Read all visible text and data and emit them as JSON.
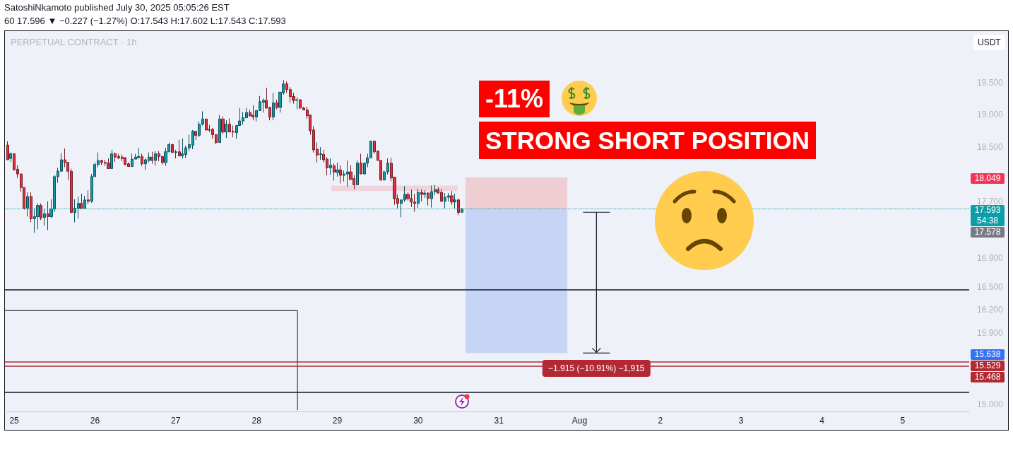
{
  "chart_data": {
    "type": "candlestick",
    "title": "SatoshiNkamoto published July 30, 2025 05:05:26 EST",
    "subtitle": "60 17.596 ▼ −0.227 (−1.27%) O:17.543 H:17.602 L:17.543 C:17.593",
    "ylabel": "USDT",
    "annotations": [
      "PERPETUAL CONTRACT · 1h",
      "54:38",
      "-11%",
      "STRONG SHORT POSITION",
      "17.578",
      {
        "text": "−1.915 (−10.91%) −1,915",
        "x": "2025-08-01T05:00",
        "y": 15.44
      },
      "18.049",
      "15.638"
    ],
    "x": [
      "2025-07-24T22:00",
      "2025-07-24T23:00",
      "2025-07-25T00:00",
      "2025-07-25T01:00",
      "2025-07-25T02:00",
      "2025-07-25T03:00",
      "2025-07-25T04:00",
      "2025-07-25T05:00",
      "2025-07-25T06:00",
      "2025-07-25T07:00",
      "2025-07-25T08:00",
      "2025-07-25T09:00",
      "2025-07-25T10:00",
      "2025-07-25T11:00",
      "2025-07-25T12:00",
      "2025-07-25T13:00",
      "2025-07-25T14:00",
      "2025-07-25T15:00",
      "2025-07-25T16:00",
      "2025-07-25T17:00",
      "2025-07-25T18:00",
      "2025-07-25T19:00",
      "2025-07-25T20:00",
      "2025-07-25T21:00",
      "2025-07-25T22:00",
      "2025-07-25T23:00",
      "2025-07-26T00:00",
      "2025-07-26T01:00",
      "2025-07-26T02:00",
      "2025-07-26T03:00",
      "2025-07-26T04:00",
      "2025-07-26T05:00",
      "2025-07-26T06:00",
      "2025-07-26T07:00",
      "2025-07-26T08:00",
      "2025-07-26T09:00",
      "2025-07-26T10:00",
      "2025-07-26T11:00",
      "2025-07-26T12:00",
      "2025-07-26T13:00",
      "2025-07-26T14:00",
      "2025-07-26T15:00",
      "2025-07-26T16:00",
      "2025-07-26T17:00",
      "2025-07-26T18:00",
      "2025-07-26T19:00",
      "2025-07-26T20:00",
      "2025-07-26T21:00",
      "2025-07-26T22:00",
      "2025-07-26T23:00",
      "2025-07-27T00:00",
      "2025-07-27T01:00",
      "2025-07-27T02:00",
      "2025-07-27T03:00",
      "2025-07-27T04:00",
      "2025-07-27T05:00",
      "2025-07-27T06:00",
      "2025-07-27T07:00",
      "2025-07-27T08:00",
      "2025-07-27T09:00",
      "2025-07-27T10:00",
      "2025-07-27T11:00",
      "2025-07-27T12:00",
      "2025-07-27T13:00",
      "2025-07-27T14:00",
      "2025-07-27T15:00",
      "2025-07-27T16:00",
      "2025-07-27T17:00",
      "2025-07-27T18:00",
      "2025-07-27T19:00",
      "2025-07-27T20:00",
      "2025-07-27T21:00",
      "2025-07-27T22:00",
      "2025-07-27T23:00",
      "2025-07-28T00:00",
      "2025-07-28T01:00",
      "2025-07-28T02:00",
      "2025-07-28T03:00",
      "2025-07-28T04:00",
      "2025-07-28T05:00",
      "2025-07-28T06:00",
      "2025-07-28T07:00",
      "2025-07-28T08:00",
      "2025-07-28T09:00",
      "2025-07-28T10:00",
      "2025-07-28T11:00",
      "2025-07-28T12:00",
      "2025-07-28T13:00",
      "2025-07-28T14:00",
      "2025-07-28T15:00",
      "2025-07-28T16:00",
      "2025-07-28T17:00",
      "2025-07-28T18:00",
      "2025-07-28T19:00",
      "2025-07-28T20:00",
      "2025-07-28T21:00",
      "2025-07-28T22:00",
      "2025-07-28T23:00",
      "2025-07-29T00:00",
      "2025-07-29T01:00",
      "2025-07-29T02:00",
      "2025-07-29T03:00",
      "2025-07-29T04:00",
      "2025-07-29T05:00",
      "2025-07-29T06:00",
      "2025-07-29T07:00",
      "2025-07-29T08:00",
      "2025-07-29T09:00",
      "2025-07-29T10:00",
      "2025-07-29T11:00",
      "2025-07-29T12:00",
      "2025-07-29T13:00",
      "2025-07-29T14:00",
      "2025-07-29T15:00",
      "2025-07-29T16:00",
      "2025-07-29T17:00",
      "2025-07-29T18:00",
      "2025-07-29T19:00",
      "2025-07-29T20:00",
      "2025-07-29T21:00",
      "2025-07-29T22:00",
      "2025-07-29T23:00",
      "2025-07-30T00:00",
      "2025-07-30T01:00",
      "2025-07-30T02:00",
      "2025-07-30T03:00",
      "2025-07-30T04:00",
      "2025-07-30T05:00",
      "2025-07-30T06:00",
      "2025-07-30T07:00",
      "2025-07-30T08:00",
      "2025-07-30T09:00",
      "2025-07-30T10:00",
      "2025-07-30T11:00",
      "2025-07-30T12:00",
      "2025-07-30T13:00"
    ],
    "ohlc": [
      [
        18.53,
        18.59,
        18.31,
        18.31
      ],
      [
        18.33,
        18.42,
        18.28,
        18.4
      ],
      [
        18.4,
        18.41,
        18.15,
        18.16
      ],
      [
        18.17,
        18.23,
        18.04,
        18.1
      ],
      [
        18.1,
        18.1,
        17.84,
        17.9
      ],
      [
        17.9,
        17.9,
        17.58,
        17.6
      ],
      [
        17.6,
        17.83,
        17.48,
        17.77
      ],
      [
        17.77,
        17.83,
        17.4,
        17.45
      ],
      [
        17.45,
        17.6,
        17.25,
        17.48
      ],
      [
        17.48,
        17.67,
        17.3,
        17.64
      ],
      [
        17.64,
        17.67,
        17.43,
        17.46
      ],
      [
        17.47,
        17.59,
        17.35,
        17.52
      ],
      [
        17.52,
        17.7,
        17.29,
        17.48
      ],
      [
        17.48,
        17.73,
        17.46,
        17.59
      ],
      [
        17.59,
        18.08,
        17.55,
        18.06
      ],
      [
        18.06,
        18.19,
        17.97,
        18.14
      ],
      [
        18.14,
        18.41,
        18.14,
        18.31
      ],
      [
        18.31,
        18.48,
        18.2,
        18.27
      ],
      [
        18.27,
        18.28,
        18.01,
        18.14
      ],
      [
        18.14,
        18.18,
        17.53,
        17.54
      ],
      [
        17.54,
        17.73,
        17.4,
        17.6
      ],
      [
        17.6,
        17.77,
        17.45,
        17.67
      ],
      [
        17.67,
        17.81,
        17.6,
        17.6
      ],
      [
        17.6,
        17.78,
        17.6,
        17.72
      ],
      [
        17.72,
        17.86,
        17.66,
        17.7
      ],
      [
        17.7,
        18.1,
        17.68,
        18.06
      ],
      [
        18.06,
        18.27,
        18.06,
        18.24
      ],
      [
        18.24,
        18.42,
        18.2,
        18.3
      ],
      [
        18.3,
        18.31,
        18.23,
        18.27
      ],
      [
        18.27,
        18.31,
        18.22,
        18.26
      ],
      [
        18.26,
        18.33,
        18.18,
        18.18
      ],
      [
        18.18,
        18.46,
        18.18,
        18.4
      ],
      [
        18.4,
        18.42,
        18.28,
        18.35
      ],
      [
        18.36,
        18.4,
        18.32,
        18.34
      ],
      [
        18.35,
        18.39,
        18.29,
        18.33
      ],
      [
        18.34,
        18.35,
        18.23,
        18.24
      ],
      [
        18.25,
        18.27,
        18.21,
        18.21
      ],
      [
        18.21,
        18.4,
        18.21,
        18.32
      ],
      [
        18.32,
        18.4,
        18.32,
        18.35
      ],
      [
        18.34,
        18.49,
        18.34,
        18.36
      ],
      [
        18.36,
        18.4,
        18.22,
        18.25
      ],
      [
        18.25,
        18.33,
        18.16,
        18.31
      ],
      [
        18.3,
        18.42,
        18.27,
        18.35
      ],
      [
        18.35,
        18.43,
        18.25,
        18.3
      ],
      [
        18.3,
        18.44,
        18.22,
        18.4
      ],
      [
        18.4,
        18.44,
        18.29,
        18.36
      ],
      [
        18.36,
        18.37,
        18.24,
        18.27
      ],
      [
        18.27,
        18.49,
        18.22,
        18.43
      ],
      [
        18.43,
        18.57,
        18.43,
        18.54
      ],
      [
        18.54,
        18.55,
        18.42,
        18.42
      ],
      [
        18.42,
        18.46,
        18.33,
        18.43
      ],
      [
        18.43,
        18.61,
        18.36,
        18.37
      ],
      [
        18.37,
        18.63,
        18.33,
        18.4
      ],
      [
        18.39,
        18.52,
        18.34,
        18.49
      ],
      [
        18.49,
        18.69,
        18.44,
        18.54
      ],
      [
        18.53,
        18.76,
        18.47,
        18.74
      ],
      [
        18.74,
        18.75,
        18.61,
        18.68
      ],
      [
        18.68,
        18.89,
        18.65,
        18.85
      ],
      [
        18.85,
        19.05,
        18.83,
        18.93
      ],
      [
        18.93,
        18.93,
        18.76,
        18.76
      ],
      [
        18.77,
        18.84,
        18.73,
        18.76
      ],
      [
        18.77,
        18.79,
        18.63,
        18.69
      ],
      [
        18.69,
        18.69,
        18.55,
        18.57
      ],
      [
        18.57,
        18.99,
        18.57,
        18.93
      ],
      [
        18.93,
        18.97,
        18.7,
        18.73
      ],
      [
        18.73,
        18.91,
        18.64,
        18.85
      ],
      [
        18.85,
        18.94,
        18.73,
        18.73
      ],
      [
        18.74,
        18.83,
        18.65,
        18.73
      ],
      [
        18.72,
        18.83,
        18.63,
        18.83
      ],
      [
        18.83,
        19.1,
        18.83,
        18.9
      ],
      [
        18.9,
        19.04,
        18.84,
        18.95
      ],
      [
        18.95,
        19.1,
        18.94,
        19.03
      ],
      [
        19.03,
        19.07,
        18.97,
        18.98
      ],
      [
        18.99,
        19.14,
        18.91,
        18.96
      ],
      [
        18.96,
        19.07,
        18.89,
        19.06
      ],
      [
        19.06,
        19.29,
        19.06,
        19.2
      ],
      [
        19.19,
        19.25,
        19.03,
        19.22
      ],
      [
        19.22,
        19.42,
        19.09,
        19.1
      ],
      [
        19.11,
        19.12,
        18.91,
        18.96
      ],
      [
        18.96,
        19.34,
        18.91,
        19.18
      ],
      [
        19.18,
        19.23,
        19.08,
        19.11
      ],
      [
        19.11,
        19.35,
        19.03,
        19.35
      ],
      [
        19.34,
        19.54,
        19.31,
        19.48
      ],
      [
        19.48,
        19.52,
        19.34,
        19.39
      ],
      [
        19.39,
        19.43,
        19.18,
        19.28
      ],
      [
        19.28,
        19.34,
        19.17,
        19.22
      ],
      [
        19.22,
        19.27,
        19.08,
        19.23
      ],
      [
        19.23,
        19.24,
        19.09,
        19.1
      ],
      [
        19.1,
        19.12,
        19.07,
        19.07
      ],
      [
        19.07,
        19.12,
        18.93,
        18.98
      ],
      [
        18.99,
        19.0,
        18.69,
        18.75
      ],
      [
        18.76,
        18.82,
        18.42,
        18.46
      ],
      [
        18.47,
        18.57,
        18.27,
        18.38
      ],
      [
        18.39,
        18.5,
        18.31,
        18.4
      ],
      [
        18.39,
        18.46,
        18.27,
        18.31
      ],
      [
        18.32,
        18.35,
        18.08,
        18.19
      ],
      [
        18.19,
        18.33,
        18.09,
        18.23
      ],
      [
        18.22,
        18.26,
        18.0,
        18.13
      ],
      [
        18.12,
        18.27,
        18.06,
        18.16
      ],
      [
        18.16,
        18.23,
        17.96,
        18.08
      ],
      [
        18.08,
        18.15,
        17.99,
        18.1
      ],
      [
        18.1,
        18.3,
        17.91,
        18.13
      ],
      [
        18.13,
        18.23,
        18.01,
        18.02
      ],
      [
        18.03,
        18.08,
        17.88,
        17.94
      ],
      [
        17.94,
        18.3,
        17.94,
        18.26
      ],
      [
        18.26,
        18.4,
        18.1,
        18.1
      ],
      [
        18.1,
        18.26,
        18.1,
        18.26
      ],
      [
        18.26,
        18.4,
        18.2,
        18.34
      ],
      [
        18.34,
        18.59,
        18.34,
        18.59
      ],
      [
        18.59,
        18.6,
        18.4,
        18.43
      ],
      [
        18.44,
        18.45,
        18.3,
        18.3
      ],
      [
        18.3,
        18.31,
        18.0,
        18.01
      ],
      [
        18.01,
        18.15,
        18.01,
        18.13
      ],
      [
        18.13,
        18.33,
        18.09,
        18.26
      ],
      [
        18.26,
        18.34,
        17.99,
        18.04
      ],
      [
        18.05,
        18.06,
        17.65,
        17.74
      ],
      [
        17.74,
        17.8,
        17.6,
        17.67
      ],
      [
        17.67,
        17.72,
        17.47,
        17.72
      ],
      [
        17.72,
        17.92,
        17.69,
        17.8
      ],
      [
        17.8,
        17.83,
        17.71,
        17.74
      ],
      [
        17.74,
        17.87,
        17.62,
        17.69
      ],
      [
        17.69,
        17.81,
        17.55,
        17.67
      ],
      [
        17.67,
        17.88,
        17.6,
        17.83
      ],
      [
        17.83,
        17.87,
        17.7,
        17.8
      ],
      [
        17.8,
        17.86,
        17.75,
        17.82
      ],
      [
        17.82,
        17.83,
        17.64,
        17.74
      ],
      [
        17.74,
        17.93,
        17.61,
        17.84
      ],
      [
        17.84,
        17.94,
        17.79,
        17.87
      ],
      [
        17.87,
        17.9,
        17.81,
        17.82
      ],
      [
        17.83,
        17.88,
        17.69,
        17.7
      ],
      [
        17.7,
        17.82,
        17.6,
        17.76
      ],
      [
        17.76,
        17.82,
        17.7,
        17.78
      ],
      [
        17.78,
        17.85,
        17.65,
        17.69
      ],
      [
        17.69,
        17.81,
        17.6,
        17.72
      ],
      [
        17.72,
        17.74,
        17.5,
        17.54
      ],
      [
        17.543,
        17.602,
        17.543,
        17.593
      ]
    ],
    "colors": [
      "#e0303f",
      "#1497a8",
      "#e0303f",
      "#e0303f",
      "#e0303f",
      "#e0303f",
      "#1497a8",
      "#e0303f",
      "#1497a8",
      "#1497a8",
      "#e0303f",
      "#1497a8",
      "#e0303f",
      "#1497a8",
      "#1497a8",
      "#1497a8",
      "#1497a8",
      "#e0303f",
      "#e0303f",
      "#e0303f",
      "#1497a8",
      "#1497a8",
      "#e0303f",
      "#1497a8",
      "#e0303f",
      "#1497a8",
      "#1497a8",
      "#1497a8",
      "#e0303f",
      "#e0303f",
      "#e0303f",
      "#1497a8",
      "#e0303f",
      "#e0303f",
      "#e0303f",
      "#e0303f",
      "#e0303f",
      "#1497a8",
      "#1497a8",
      "#1497a8",
      "#e0303f",
      "#1497a8",
      "#1497a8",
      "#e0303f",
      "#1497a8",
      "#e0303f",
      "#e0303f",
      "#1497a8",
      "#1497a8",
      "#e0303f",
      "#1497a8",
      "#e0303f",
      "#1497a8",
      "#1497a8",
      "#1497a8",
      "#1497a8",
      "#e0303f",
      "#1497a8",
      "#1497a8",
      "#e0303f",
      "#e0303f",
      "#e0303f",
      "#e0303f",
      "#1497a8",
      "#e0303f",
      "#1497a8",
      "#e0303f",
      "#e0303f",
      "#1497a8",
      "#1497a8",
      "#1497a8",
      "#1497a8",
      "#e0303f",
      "#e0303f",
      "#1497a8",
      "#1497a8",
      "#1497a8",
      "#e0303f",
      "#e0303f",
      "#1497a8",
      "#e0303f",
      "#1497a8",
      "#1497a8",
      "#e0303f",
      "#e0303f",
      "#e0303f",
      "#1497a8",
      "#e0303f",
      "#e0303f",
      "#e0303f",
      "#e0303f",
      "#e0303f",
      "#e0303f",
      "#1497a8",
      "#e0303f",
      "#e0303f",
      "#1497a8",
      "#e0303f",
      "#1497a8",
      "#e0303f",
      "#1497a8",
      "#1497a8",
      "#e0303f",
      "#e0303f",
      "#1497a8",
      "#e0303f",
      "#1497a8",
      "#1497a8",
      "#1497a8",
      "#e0303f",
      "#e0303f",
      "#e0303f",
      "#1497a8",
      "#1497a8",
      "#e0303f",
      "#e0303f",
      "#e0303f",
      "#1497a8",
      "#1497a8",
      "#e0303f",
      "#e0303f",
      "#e0303f",
      "#1497a8",
      "#e0303f",
      "#1497a8",
      "#e0303f",
      "#1497a8",
      "#1497a8",
      "#e0303f",
      "#e0303f",
      "#1497a8",
      "#1497a8",
      "#e0303f",
      "#1497a8",
      "#e0303f",
      "#1497a8"
    ],
    "series": [
      {
        "type": "line",
        "x": [
          "2025-07-24T21:15",
          "2025-07-28T12:10",
          "2025-07-28T12:10"
        ],
        "values": [
          16.19,
          16.19,
          14.93
        ],
        "color": "#131722",
        "marker": "none"
      }
    ],
    "xlim": [
      "2025-07-24T21:15",
      "2025-08-05T19:45"
    ],
    "xticks": [
      {
        "value": "2025-07-25",
        "label": "25"
      },
      {
        "value": "2025-07-26",
        "label": "26"
      },
      {
        "value": "2025-07-27",
        "label": "27"
      },
      {
        "value": "2025-07-28",
        "label": "28"
      },
      {
        "value": "2025-07-29",
        "label": "29"
      },
      {
        "value": "2025-07-30",
        "label": "30"
      },
      {
        "value": "2025-07-31",
        "label": "31"
      },
      {
        "value": "2025-08-01",
        "label": "Aug"
      },
      {
        "value": "2025-08-02",
        "label": "2"
      },
      {
        "value": "2025-08-03",
        "label": "3"
      },
      {
        "value": "2025-08-04",
        "label": "4"
      },
      {
        "value": "2025-08-05",
        "label": "5"
      }
    ],
    "ylim": [
      14.91,
      20.35
    ],
    "log": true,
    "yticks": [
      {
        "value": 19.5,
        "label": "19.500"
      },
      {
        "value": 19,
        "label": "19.000"
      },
      {
        "value": 18.5,
        "label": "18.500"
      },
      {
        "value": 17.7,
        "label": "17.700"
      },
      {
        "value": 16.9,
        "label": "16.900"
      },
      {
        "value": 16.5,
        "label": "16.500"
      },
      {
        "value": 16.2,
        "label": "16.200"
      },
      {
        "value": 15.9,
        "label": "15.900"
      },
      {
        "value": 15,
        "label": "15.000"
      }
    ],
    "ref_lines": [
      {
        "axis": "y",
        "value": 17.593,
        "label": "17.593",
        "color": "#0e9ea8",
        "line_style": "dotted"
      },
      {
        "axis": "y",
        "value": 16.47,
        "color": "#131722"
      },
      {
        "axis": "y",
        "value": 15.529,
        "label": "15.529",
        "color": "#b22833"
      },
      {
        "axis": "y",
        "value": 15.468,
        "label": "15.468",
        "color": "#b22833"
      },
      {
        "axis": "y",
        "value": 15.15,
        "color": "#131722"
      }
    ],
    "bands": [
      {
        "axis": "y",
        "from": 17.85,
        "to": 17.93,
        "color": "#efd4dc"
      },
      {
        "axis": "y",
        "from": 17.593,
        "to": 18.049,
        "color": "#eecdd3"
      },
      {
        "axis": "y",
        "from": 17.593,
        "to": 15.638,
        "color": "#c6d5f6"
      }
    ]
  }
}
